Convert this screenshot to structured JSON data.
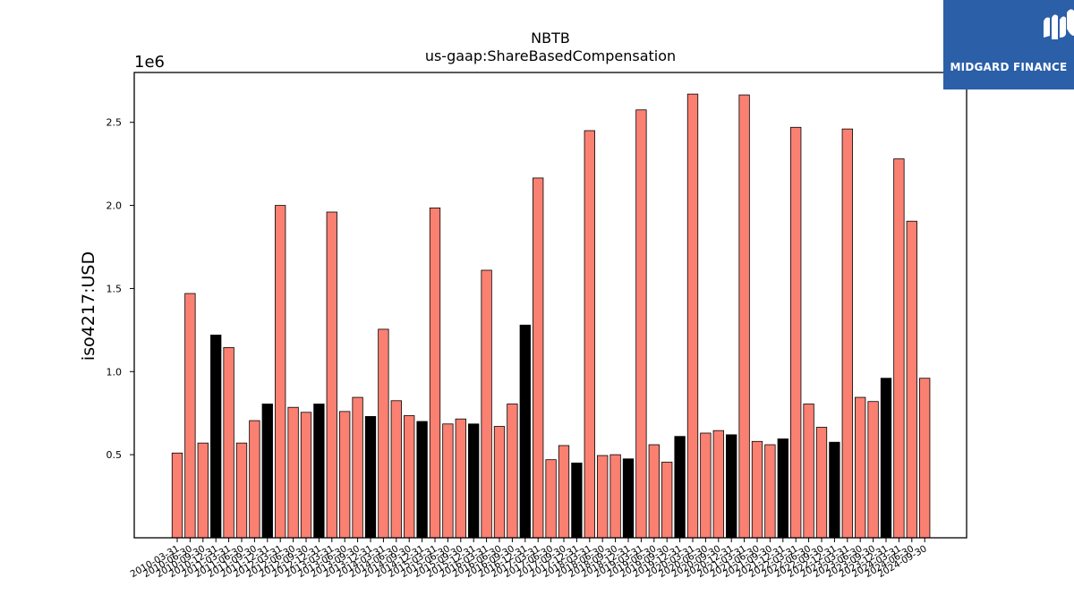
{
  "chart_data": {
    "type": "bar",
    "title": "NBTB",
    "subtitle": "us-gaap:ShareBasedCompensation",
    "ylabel": "iso4217:USD",
    "xlabel": "",
    "y_scale_label": "1e6",
    "y_ticks": [
      "0.5",
      "1.0",
      "1.5",
      "2.0",
      "2.5"
    ],
    "ylim": [
      0,
      2800000
    ],
    "grid": false,
    "bar_colors": {
      "default": "#fa8072",
      "highlight": "#000000"
    },
    "categories": [
      "2010-03-31",
      "2010-06-30",
      "2010-09-30",
      "2010-12-31",
      "2011-03-31",
      "2011-06-30",
      "2011-09-30",
      "2011-12-31",
      "2012-03-31",
      "2012-06-30",
      "2012-09-30",
      "2012-12-31",
      "2013-03-31",
      "2013-06-30",
      "2013-09-30",
      "2013-12-31",
      "2014-03-31",
      "2014-06-30",
      "2014-09-30",
      "2014-12-31",
      "2015-03-31",
      "2015-06-30",
      "2015-09-30",
      "2015-12-31",
      "2016-03-31",
      "2016-06-30",
      "2016-09-30",
      "2016-12-31",
      "2017-03-31",
      "2017-06-30",
      "2017-09-30",
      "2017-12-31",
      "2018-03-31",
      "2018-06-30",
      "2018-09-30",
      "2018-12-31",
      "2019-03-31",
      "2019-06-30",
      "2019-09-30",
      "2019-12-31",
      "2020-03-31",
      "2020-06-30",
      "2020-09-30",
      "2020-12-31",
      "2021-03-31",
      "2021-06-30",
      "2021-09-30",
      "2021-12-31",
      "2022-03-31",
      "2022-06-30",
      "2022-09-30",
      "2022-12-31",
      "2023-03-31",
      "2023-06-30",
      "2023-09-30",
      "2023-12-31",
      "2024-03-31",
      "2024-06-30",
      "2024-09-30"
    ],
    "values": [
      510000,
      1470000,
      570000,
      1220000,
      1145000,
      570000,
      705000,
      805000,
      2000000,
      785000,
      755000,
      805000,
      1960000,
      760000,
      845000,
      730000,
      1255000,
      825000,
      735000,
      700000,
      1985000,
      685000,
      715000,
      685000,
      1610000,
      670000,
      805000,
      1280000,
      2165000,
      470000,
      555000,
      450000,
      2450000,
      495000,
      500000,
      475000,
      2575000,
      560000,
      455000,
      610000,
      2670000,
      630000,
      645000,
      620000,
      2665000,
      580000,
      560000,
      595000,
      2470000,
      805000,
      665000,
      575000,
      2460000,
      845000,
      820000,
      960000,
      2280000,
      1905000,
      960000
    ],
    "highlight": [
      false,
      false,
      false,
      true,
      false,
      false,
      false,
      true,
      false,
      false,
      false,
      true,
      false,
      false,
      false,
      true,
      false,
      false,
      false,
      true,
      false,
      false,
      false,
      true,
      false,
      false,
      false,
      true,
      false,
      false,
      false,
      true,
      false,
      false,
      false,
      true,
      false,
      false,
      false,
      true,
      false,
      false,
      false,
      true,
      false,
      false,
      false,
      true,
      false,
      false,
      false,
      true,
      false,
      false,
      false,
      true,
      false,
      false,
      false
    ]
  },
  "logo": {
    "text": "MIDGARD FINANCE",
    "icon": "midgard-logo-icon",
    "background": "#2b5fa8"
  }
}
